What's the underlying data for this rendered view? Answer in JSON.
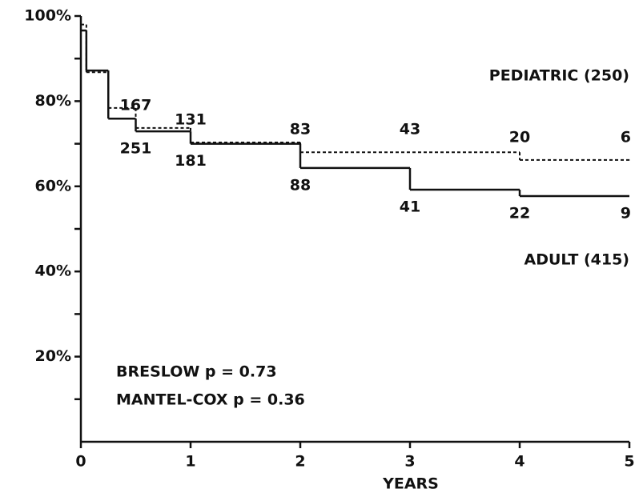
{
  "chart_data": {
    "type": "step",
    "x_label": "YEARS",
    "xlim": [
      0,
      5
    ],
    "xticks": [
      0,
      1,
      2,
      3,
      4,
      5
    ],
    "ylim": [
      0,
      100
    ],
    "yticks": [
      {
        "value": 20,
        "label": "20%"
      },
      {
        "value": 40,
        "label": "40%"
      },
      {
        "value": 60,
        "label": "60%"
      },
      {
        "value": 80,
        "label": "80%"
      },
      {
        "value": 100,
        "label": "100%"
      }
    ],
    "yminorticks": [
      10,
      30,
      50,
      70,
      90
    ],
    "series": [
      {
        "name": "PEDIATRIC (250)",
        "color": "#111",
        "dash": true,
        "x": [
          0,
          0.05,
          0.25,
          0.5,
          1,
          2,
          4,
          5
        ],
        "values": [
          98,
          86.8,
          78.4,
          73.7,
          70.3,
          68,
          66.2,
          66.2
        ],
        "at_risk_x": [
          0.5,
          1,
          2,
          3,
          4,
          5
        ],
        "at_risk": [
          167,
          131,
          83,
          43,
          20,
          6
        ]
      },
      {
        "name": "ADULT (415)",
        "color": "#111",
        "dash": false,
        "x": [
          0,
          0.05,
          0.25,
          0.5,
          1,
          2,
          3,
          4,
          5
        ],
        "values": [
          96.6,
          87.2,
          75.9,
          72.9,
          70,
          64.3,
          59.2,
          57.7,
          57.7
        ],
        "at_risk_x": [
          0.5,
          1,
          2,
          3,
          4,
          5
        ],
        "at_risk": [
          251,
          181,
          88,
          41,
          22,
          9
        ]
      }
    ],
    "annotations": [
      "BRESLOW p = 0.73",
      "MANTEL-COX p = 0.36"
    ]
  }
}
